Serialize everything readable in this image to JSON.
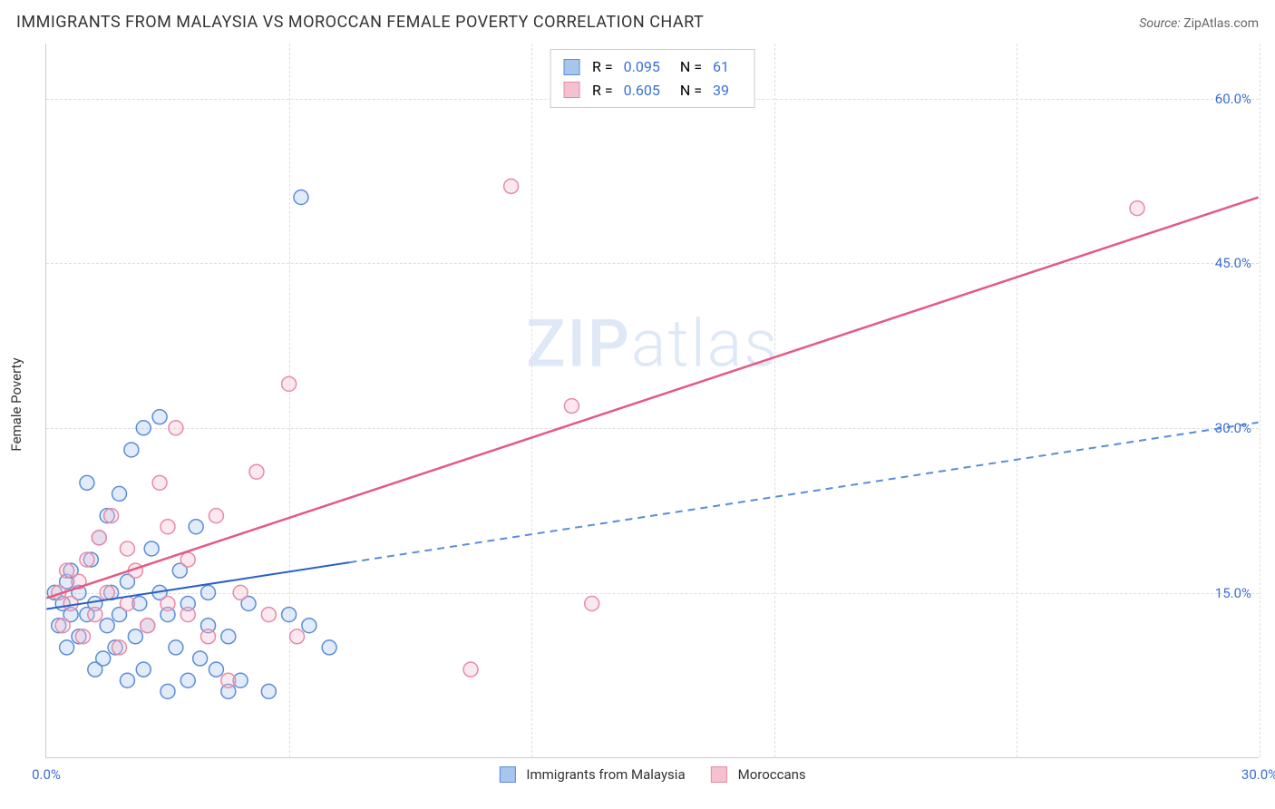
{
  "title": "IMMIGRANTS FROM MALAYSIA VS MOROCCAN FEMALE POVERTY CORRELATION CHART",
  "source_label": "Source:",
  "source_value": "ZipAtlas.com",
  "watermark": "ZIPatlas",
  "ylabel": "Female Poverty",
  "chart": {
    "type": "scatter",
    "xlim": [
      0,
      30
    ],
    "ylim": [
      0,
      65
    ],
    "xtick_labels": [
      "0.0%",
      "30.0%"
    ],
    "xtick_positions": [
      0,
      30
    ],
    "ytick_labels": [
      "15.0%",
      "30.0%",
      "45.0%",
      "60.0%"
    ],
    "ytick_positions": [
      15,
      30,
      45,
      60
    ],
    "grid_x_positions": [
      0,
      6,
      12,
      18,
      24,
      30
    ],
    "grid_color": "#dddddd",
    "background_color": "#ffffff",
    "axis_color": "#cccccc",
    "marker_radius": 8,
    "marker_stroke_width": 1.5,
    "marker_fill_opacity": 0.35,
    "series": [
      {
        "name": "Immigrants from Malaysia",
        "color_stroke": "#5a8dd8",
        "color_fill": "#a8c5ee",
        "R": "0.095",
        "N": "61",
        "trend": {
          "x1": 0,
          "y1": 13.5,
          "x2": 30,
          "y2": 30.5,
          "solid_until_x": 7.5,
          "stroke_solid": "#2a5fc8",
          "stroke_dash": "#5a8dd8",
          "width": 2
        },
        "points": [
          [
            0.2,
            15
          ],
          [
            0.3,
            12
          ],
          [
            0.4,
            14
          ],
          [
            0.5,
            16
          ],
          [
            0.5,
            10
          ],
          [
            0.6,
            13
          ],
          [
            0.6,
            17
          ],
          [
            0.8,
            11
          ],
          [
            0.8,
            15
          ],
          [
            1.0,
            25
          ],
          [
            1.0,
            13
          ],
          [
            1.1,
            18
          ],
          [
            1.2,
            8
          ],
          [
            1.2,
            14
          ],
          [
            1.3,
            20
          ],
          [
            1.4,
            9
          ],
          [
            1.5,
            22
          ],
          [
            1.5,
            12
          ],
          [
            1.6,
            15
          ],
          [
            1.7,
            10
          ],
          [
            1.8,
            24
          ],
          [
            1.8,
            13
          ],
          [
            2.0,
            7
          ],
          [
            2.0,
            16
          ],
          [
            2.1,
            28
          ],
          [
            2.2,
            11
          ],
          [
            2.3,
            14
          ],
          [
            2.4,
            30
          ],
          [
            2.4,
            8
          ],
          [
            2.5,
            12
          ],
          [
            2.6,
            19
          ],
          [
            2.8,
            31
          ],
          [
            2.8,
            15
          ],
          [
            3.0,
            13
          ],
          [
            3.0,
            6
          ],
          [
            3.2,
            10
          ],
          [
            3.3,
            17
          ],
          [
            3.5,
            7
          ],
          [
            3.5,
            14
          ],
          [
            3.7,
            21
          ],
          [
            3.8,
            9
          ],
          [
            4.0,
            12
          ],
          [
            4.0,
            15
          ],
          [
            4.2,
            8
          ],
          [
            4.5,
            11
          ],
          [
            4.5,
            6
          ],
          [
            4.8,
            7
          ],
          [
            5.0,
            14
          ],
          [
            5.5,
            6
          ],
          [
            6.0,
            13
          ],
          [
            6.3,
            51
          ],
          [
            6.5,
            12
          ],
          [
            7.0,
            10
          ]
        ]
      },
      {
        "name": "Moroccans",
        "color_stroke": "#e88aa5",
        "color_fill": "#f4c1d0",
        "R": "0.605",
        "N": "39",
        "trend": {
          "x1": 0,
          "y1": 14.5,
          "x2": 30,
          "y2": 51,
          "stroke_solid": "#e35a84",
          "width": 2.5
        },
        "points": [
          [
            0.3,
            15
          ],
          [
            0.4,
            12
          ],
          [
            0.5,
            17
          ],
          [
            0.6,
            14
          ],
          [
            0.8,
            16
          ],
          [
            0.9,
            11
          ],
          [
            1.0,
            18
          ],
          [
            1.2,
            13
          ],
          [
            1.3,
            20
          ],
          [
            1.5,
            15
          ],
          [
            1.6,
            22
          ],
          [
            1.8,
            10
          ],
          [
            2.0,
            19
          ],
          [
            2.0,
            14
          ],
          [
            2.2,
            17
          ],
          [
            2.5,
            12
          ],
          [
            2.8,
            25
          ],
          [
            3.0,
            21
          ],
          [
            3.0,
            14
          ],
          [
            3.2,
            30
          ],
          [
            3.5,
            18
          ],
          [
            3.5,
            13
          ],
          [
            4.0,
            11
          ],
          [
            4.2,
            22
          ],
          [
            4.5,
            7
          ],
          [
            4.8,
            15
          ],
          [
            5.2,
            26
          ],
          [
            5.5,
            13
          ],
          [
            6.0,
            34
          ],
          [
            6.2,
            11
          ],
          [
            10.5,
            8
          ],
          [
            11.5,
            52
          ],
          [
            13.0,
            32
          ],
          [
            13.5,
            14
          ],
          [
            27.0,
            50
          ]
        ]
      }
    ],
    "label_color": "#3a6fd8",
    "text_color": "#333333",
    "title_fontsize": 18,
    "label_fontsize": 15
  },
  "legend_stats": {
    "r_label": "R =",
    "n_label": "N ="
  }
}
